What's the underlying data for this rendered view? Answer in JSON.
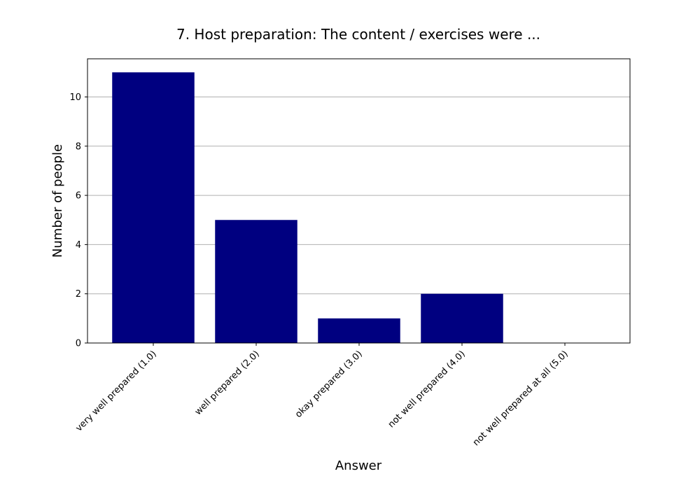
{
  "chart_data": {
    "type": "bar",
    "title": "7. Host preparation: The content / exercises were ...",
    "xlabel": "Answer",
    "ylabel": "Number of people",
    "categories": [
      "very well prepared (1.0)",
      "well prepared (2.0)",
      "okay prepared (3.0)",
      "not well prepared (4.0)",
      "not well prepared at all (5.0)"
    ],
    "values": [
      11,
      5,
      1,
      2,
      0
    ],
    "ylim": [
      0,
      11.55
    ],
    "yticks": [
      0,
      2,
      4,
      6,
      8,
      10
    ],
    "grid": "horizontal",
    "bar_color": "#000080",
    "grid_color": "#b0b0b0"
  }
}
